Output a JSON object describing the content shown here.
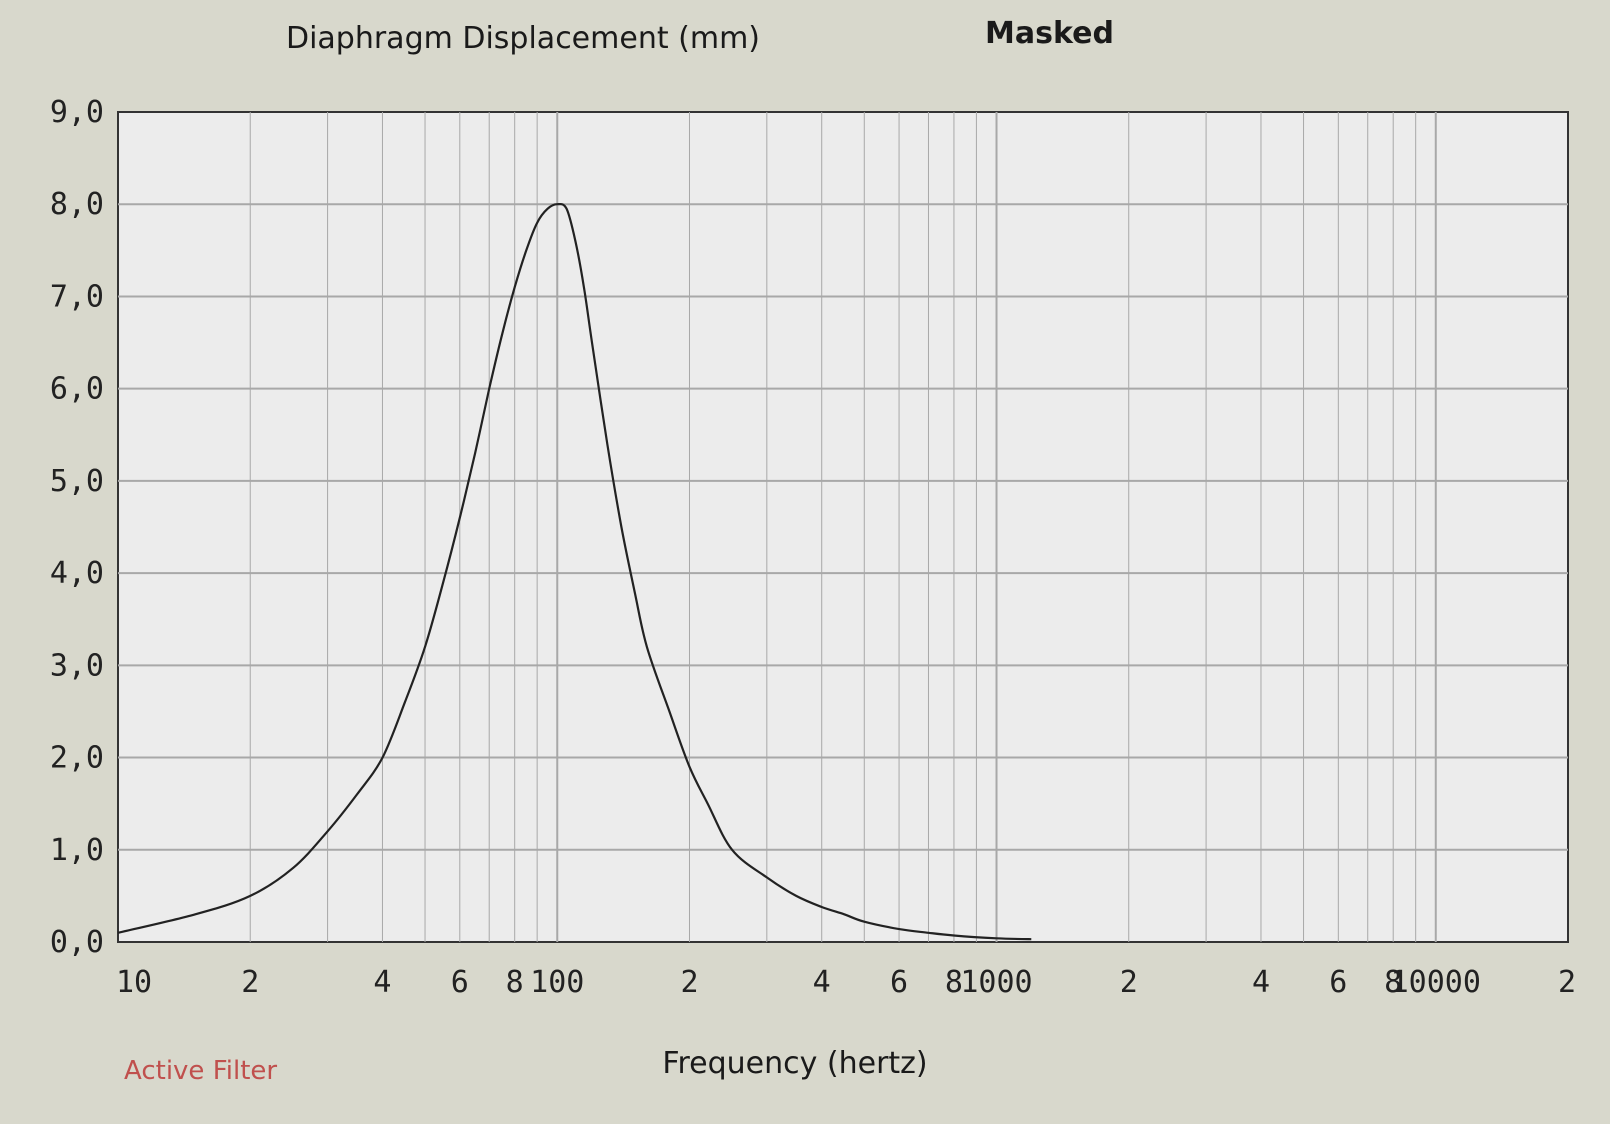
{
  "chart_data": {
    "type": "line",
    "title": "Diaphragm Displacement (mm)",
    "title_status": "Masked",
    "xlabel": "Frequency (hertz)",
    "ylabel": "",
    "x_scale": "log",
    "xlim": [
      10,
      20000
    ],
    "ylim": [
      0,
      9
    ],
    "grid": true,
    "y_ticks": [
      {
        "value": 0,
        "label": "0,0"
      },
      {
        "value": 1,
        "label": "1,0"
      },
      {
        "value": 2,
        "label": "2,0"
      },
      {
        "value": 3,
        "label": "3,0"
      },
      {
        "value": 4,
        "label": "4,0"
      },
      {
        "value": 5,
        "label": "5,0"
      },
      {
        "value": 6,
        "label": "6,0"
      },
      {
        "value": 7,
        "label": "7,0"
      },
      {
        "value": 8,
        "label": "8,0"
      },
      {
        "value": 9,
        "label": "9,0"
      }
    ],
    "x_ticks": [
      {
        "value": 10,
        "label": "10"
      },
      {
        "value": 20,
        "label": "2"
      },
      {
        "value": 40,
        "label": "4"
      },
      {
        "value": 60,
        "label": "6"
      },
      {
        "value": 80,
        "label": "8"
      },
      {
        "value": 100,
        "label": "100"
      },
      {
        "value": 200,
        "label": "2"
      },
      {
        "value": 400,
        "label": "4"
      },
      {
        "value": 600,
        "label": "6"
      },
      {
        "value": 800,
        "label": "8"
      },
      {
        "value": 1000,
        "label": "1000"
      },
      {
        "value": 2000,
        "label": "2"
      },
      {
        "value": 4000,
        "label": "4"
      },
      {
        "value": 6000,
        "label": "6"
      },
      {
        "value": 8000,
        "label": "8"
      },
      {
        "value": 10000,
        "label": "10000"
      },
      {
        "value": 20000,
        "label": "2"
      }
    ],
    "series": [
      {
        "color": "#222222",
        "x": [
          10,
          15,
          20,
          25,
          30,
          35,
          40,
          45,
          50,
          55,
          60,
          65,
          70,
          75,
          80,
          85,
          90,
          95,
          100,
          105,
          110,
          115,
          120,
          130,
          140,
          150,
          160,
          180,
          200,
          220,
          250,
          300,
          350,
          400,
          450,
          500,
          600,
          700,
          800,
          1000,
          1200
        ],
        "y": [
          0.1,
          0.3,
          0.5,
          0.8,
          1.2,
          1.6,
          2.0,
          2.6,
          3.2,
          3.9,
          4.6,
          5.3,
          6.0,
          6.6,
          7.1,
          7.5,
          7.8,
          7.95,
          8.0,
          7.95,
          7.6,
          7.1,
          6.5,
          5.4,
          4.5,
          3.8,
          3.2,
          2.5,
          1.9,
          1.5,
          1.0,
          0.7,
          0.5,
          0.38,
          0.3,
          0.22,
          0.14,
          0.1,
          0.07,
          0.04,
          0.03
        ]
      }
    ]
  },
  "footer": {
    "status_text": "Active Filter",
    "status_color": "#c0504d"
  },
  "colors": {
    "background": "#d8d8cc",
    "plot_background": "#ececec",
    "grid": "#a8a8a8",
    "axis": "#333333",
    "curve": "#222222"
  }
}
